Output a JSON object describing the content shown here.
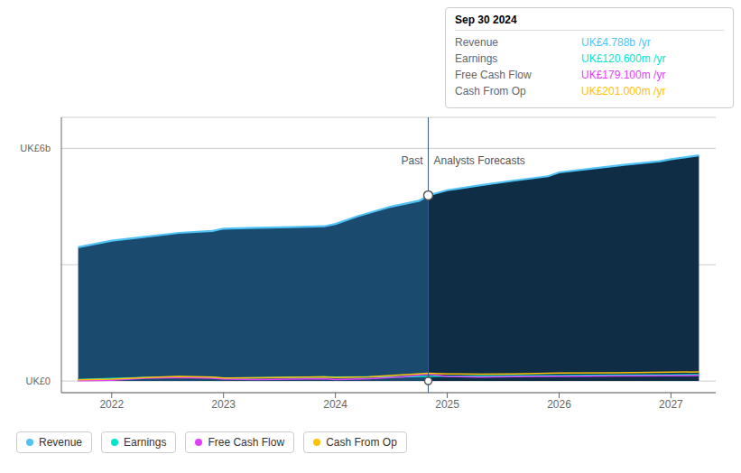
{
  "chart_data": {
    "type": "line",
    "xlim": [
      2021.55,
      2027.4
    ],
    "xticks": [
      2022,
      2023,
      2024,
      2025,
      2026,
      2027
    ],
    "ylim": [
      -0.3,
      6.8
    ],
    "yticks": [
      0,
      3,
      6
    ],
    "grid": true,
    "tick_labels": "x",
    "legend": "bottom",
    "series": [
      {
        "name": "Revenue",
        "type": "area",
        "color": "#4fc3f7",
        "x": [
          2021.7,
          2022.0,
          2022.3,
          2022.6,
          2022.9,
          2023.0,
          2023.3,
          2023.6,
          2023.9,
          2024.0,
          2024.2,
          2024.5,
          2024.75,
          2024.83,
          2025.0,
          2025.3,
          2025.6,
          2025.9,
          2026.0,
          2026.3,
          2026.6,
          2026.9,
          2027.0,
          2027.25
        ],
        "values": [
          3.45,
          3.62,
          3.72,
          3.82,
          3.87,
          3.93,
          3.95,
          3.97,
          3.99,
          4.05,
          4.25,
          4.5,
          4.65,
          4.788,
          4.92,
          5.05,
          5.17,
          5.28,
          5.38,
          5.48,
          5.58,
          5.67,
          5.72,
          5.82
        ]
      },
      {
        "name": "Earnings",
        "type": "line",
        "color": "#00e5cc",
        "x": [
          2021.7,
          2022.0,
          2022.3,
          2022.6,
          2022.9,
          2023.0,
          2023.3,
          2023.6,
          2023.9,
          2024.0,
          2024.3,
          2024.6,
          2024.83,
          2025.0,
          2025.3,
          2025.6,
          2026.0,
          2026.5,
          2027.0,
          2027.25
        ],
        "values": [
          0.04,
          0.065,
          0.09,
          0.1,
          0.09,
          0.08,
          0.085,
          0.095,
          0.11,
          0.1,
          0.105,
          0.11,
          0.1206,
          0.125,
          0.13,
          0.135,
          0.145,
          0.152,
          0.16,
          0.165
        ]
      },
      {
        "name": "Free Cash Flow",
        "type": "line",
        "color": "#e040fb",
        "x": [
          2021.7,
          2022.0,
          2022.3,
          2022.6,
          2022.9,
          2023.0,
          2023.3,
          2023.6,
          2023.9,
          2024.0,
          2024.3,
          2024.6,
          2024.83,
          2025.0,
          2025.3,
          2025.6,
          2026.0,
          2026.5,
          2027.0,
          2027.25
        ],
        "values": [
          0.01,
          0.02,
          0.075,
          0.09,
          0.07,
          0.05,
          0.04,
          0.05,
          0.06,
          0.04,
          0.06,
          0.11,
          0.1791,
          0.12,
          0.1,
          0.115,
          0.12,
          0.128,
          0.135,
          0.14
        ]
      },
      {
        "name": "Cash From Op",
        "type": "line",
        "color": "#ffc107",
        "x": [
          2021.7,
          2022.0,
          2022.3,
          2022.6,
          2022.9,
          2023.0,
          2023.3,
          2023.6,
          2023.9,
          2024.0,
          2024.3,
          2024.6,
          2024.83,
          2025.0,
          2025.3,
          2025.6,
          2026.0,
          2026.5,
          2027.0,
          2027.25
        ],
        "values": [
          0.03,
          0.05,
          0.09,
          0.12,
          0.1,
          0.08,
          0.085,
          0.095,
          0.11,
          0.09,
          0.11,
          0.16,
          0.201,
          0.185,
          0.175,
          0.185,
          0.205,
          0.215,
          0.228,
          0.235
        ]
      }
    ],
    "divider": {
      "x": 2024.83,
      "color": "#3a5a8a",
      "labels": [
        "Past",
        "Analysts Forecasts"
      ],
      "fill_colors": [
        "#1a4a6e",
        "#0f2d45"
      ],
      "markers": [
        4.788,
        0.0
      ]
    },
    "annotations": [
      {
        "text": "UK£6b",
        "y": 6
      },
      {
        "text": "UK£0",
        "y": 0
      }
    ],
    "tooltip": {
      "title": "Sep 30 2024",
      "rows": [
        {
          "label": "Revenue",
          "value": "UK£4.788b /yr"
        },
        {
          "label": "Earnings",
          "value": "UK£120.600m /yr"
        },
        {
          "label": "Free Cash Flow",
          "value": "UK£179.100m /yr"
        },
        {
          "label": "Cash From Op",
          "value": "UK£201.000m /yr"
        }
      ]
    }
  }
}
